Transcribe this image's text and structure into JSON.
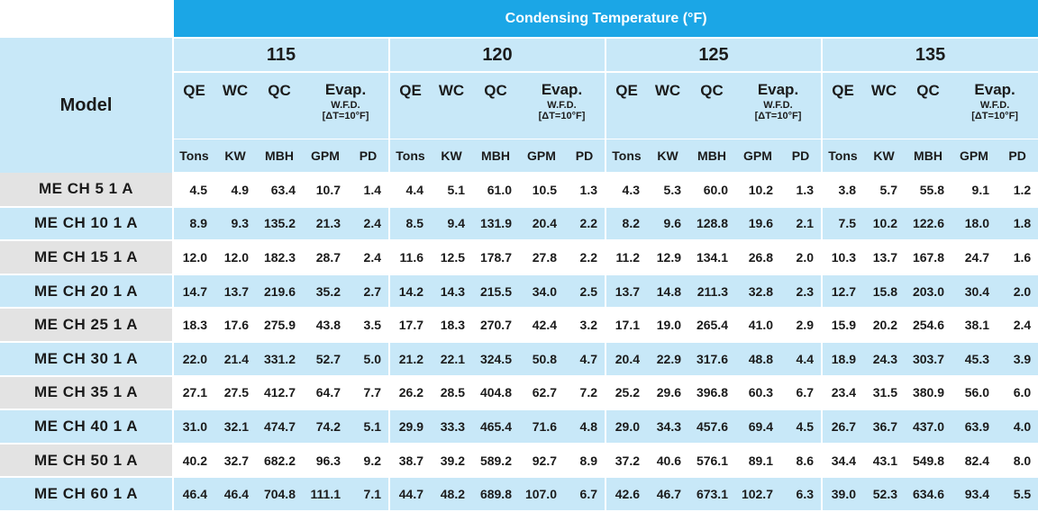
{
  "table": {
    "title": "Condensing Temperature (°F)",
    "model_header": "Model",
    "temperatures": [
      "115",
      "120",
      "125",
      "135"
    ],
    "columns": [
      "QE",
      "WC",
      "QC"
    ],
    "evap": {
      "label": "Evap.",
      "sub": "W.F.D.",
      "delta": "[ΔT=10°F]"
    },
    "units": [
      "Tons",
      "KW",
      "MBH",
      "GPM",
      "PD"
    ],
    "rows": [
      {
        "model": "ME CH 5 1 A",
        "values": [
          "4.5",
          "4.9",
          "63.4",
          "10.7",
          "1.4",
          "4.4",
          "5.1",
          "61.0",
          "10.5",
          "1.3",
          "4.3",
          "5.3",
          "60.0",
          "10.2",
          "1.3",
          "3.8",
          "5.7",
          "55.8",
          "9.1",
          "1.2"
        ]
      },
      {
        "model": "ME CH 10 1 A",
        "values": [
          "8.9",
          "9.3",
          "135.2",
          "21.3",
          "2.4",
          "8.5",
          "9.4",
          "131.9",
          "20.4",
          "2.2",
          "8.2",
          "9.6",
          "128.8",
          "19.6",
          "2.1",
          "7.5",
          "10.2",
          "122.6",
          "18.0",
          "1.8"
        ]
      },
      {
        "model": "ME CH 15 1 A",
        "values": [
          "12.0",
          "12.0",
          "182.3",
          "28.7",
          "2.4",
          "11.6",
          "12.5",
          "178.7",
          "27.8",
          "2.2",
          "11.2",
          "12.9",
          "134.1",
          "26.8",
          "2.0",
          "10.3",
          "13.7",
          "167.8",
          "24.7",
          "1.6"
        ]
      },
      {
        "model": "ME CH 20 1 A",
        "values": [
          "14.7",
          "13.7",
          "219.6",
          "35.2",
          "2.7",
          "14.2",
          "14.3",
          "215.5",
          "34.0",
          "2.5",
          "13.7",
          "14.8",
          "211.3",
          "32.8",
          "2.3",
          "12.7",
          "15.8",
          "203.0",
          "30.4",
          "2.0"
        ]
      },
      {
        "model": "ME CH 25 1 A",
        "values": [
          "18.3",
          "17.6",
          "275.9",
          "43.8",
          "3.5",
          "17.7",
          "18.3",
          "270.7",
          "42.4",
          "3.2",
          "17.1",
          "19.0",
          "265.4",
          "41.0",
          "2.9",
          "15.9",
          "20.2",
          "254.6",
          "38.1",
          "2.4"
        ]
      },
      {
        "model": "ME CH 30 1 A",
        "values": [
          "22.0",
          "21.4",
          "331.2",
          "52.7",
          "5.0",
          "21.2",
          "22.1",
          "324.5",
          "50.8",
          "4.7",
          "20.4",
          "22.9",
          "317.6",
          "48.8",
          "4.4",
          "18.9",
          "24.3",
          "303.7",
          "45.3",
          "3.9"
        ]
      },
      {
        "model": "ME CH 35 1 A",
        "values": [
          "27.1",
          "27.5",
          "412.7",
          "64.7",
          "7.7",
          "26.2",
          "28.5",
          "404.8",
          "62.7",
          "7.2",
          "25.2",
          "29.6",
          "396.8",
          "60.3",
          "6.7",
          "23.4",
          "31.5",
          "380.9",
          "56.0",
          "6.0"
        ]
      },
      {
        "model": "ME CH 40 1 A",
        "values": [
          "31.0",
          "32.1",
          "474.7",
          "74.2",
          "5.1",
          "29.9",
          "33.3",
          "465.4",
          "71.6",
          "4.8",
          "29.0",
          "34.3",
          "457.6",
          "69.4",
          "4.5",
          "26.7",
          "36.7",
          "437.0",
          "63.9",
          "4.0"
        ]
      },
      {
        "model": "ME CH 50 1 A",
        "values": [
          "40.2",
          "32.7",
          "682.2",
          "96.3",
          "9.2",
          "38.7",
          "39.2",
          "589.2",
          "92.7",
          "8.9",
          "37.2",
          "40.6",
          "576.1",
          "89.1",
          "8.6",
          "34.4",
          "43.1",
          "549.8",
          "82.4",
          "8.0"
        ]
      },
      {
        "model": "ME CH 60 1 A",
        "values": [
          "46.4",
          "46.4",
          "704.8",
          "111.1",
          "7.1",
          "44.7",
          "48.2",
          "689.8",
          "107.0",
          "6.7",
          "42.6",
          "46.7",
          "673.1",
          "102.7",
          "6.3",
          "39.0",
          "52.3",
          "634.6",
          "93.4",
          "5.5"
        ]
      }
    ]
  }
}
